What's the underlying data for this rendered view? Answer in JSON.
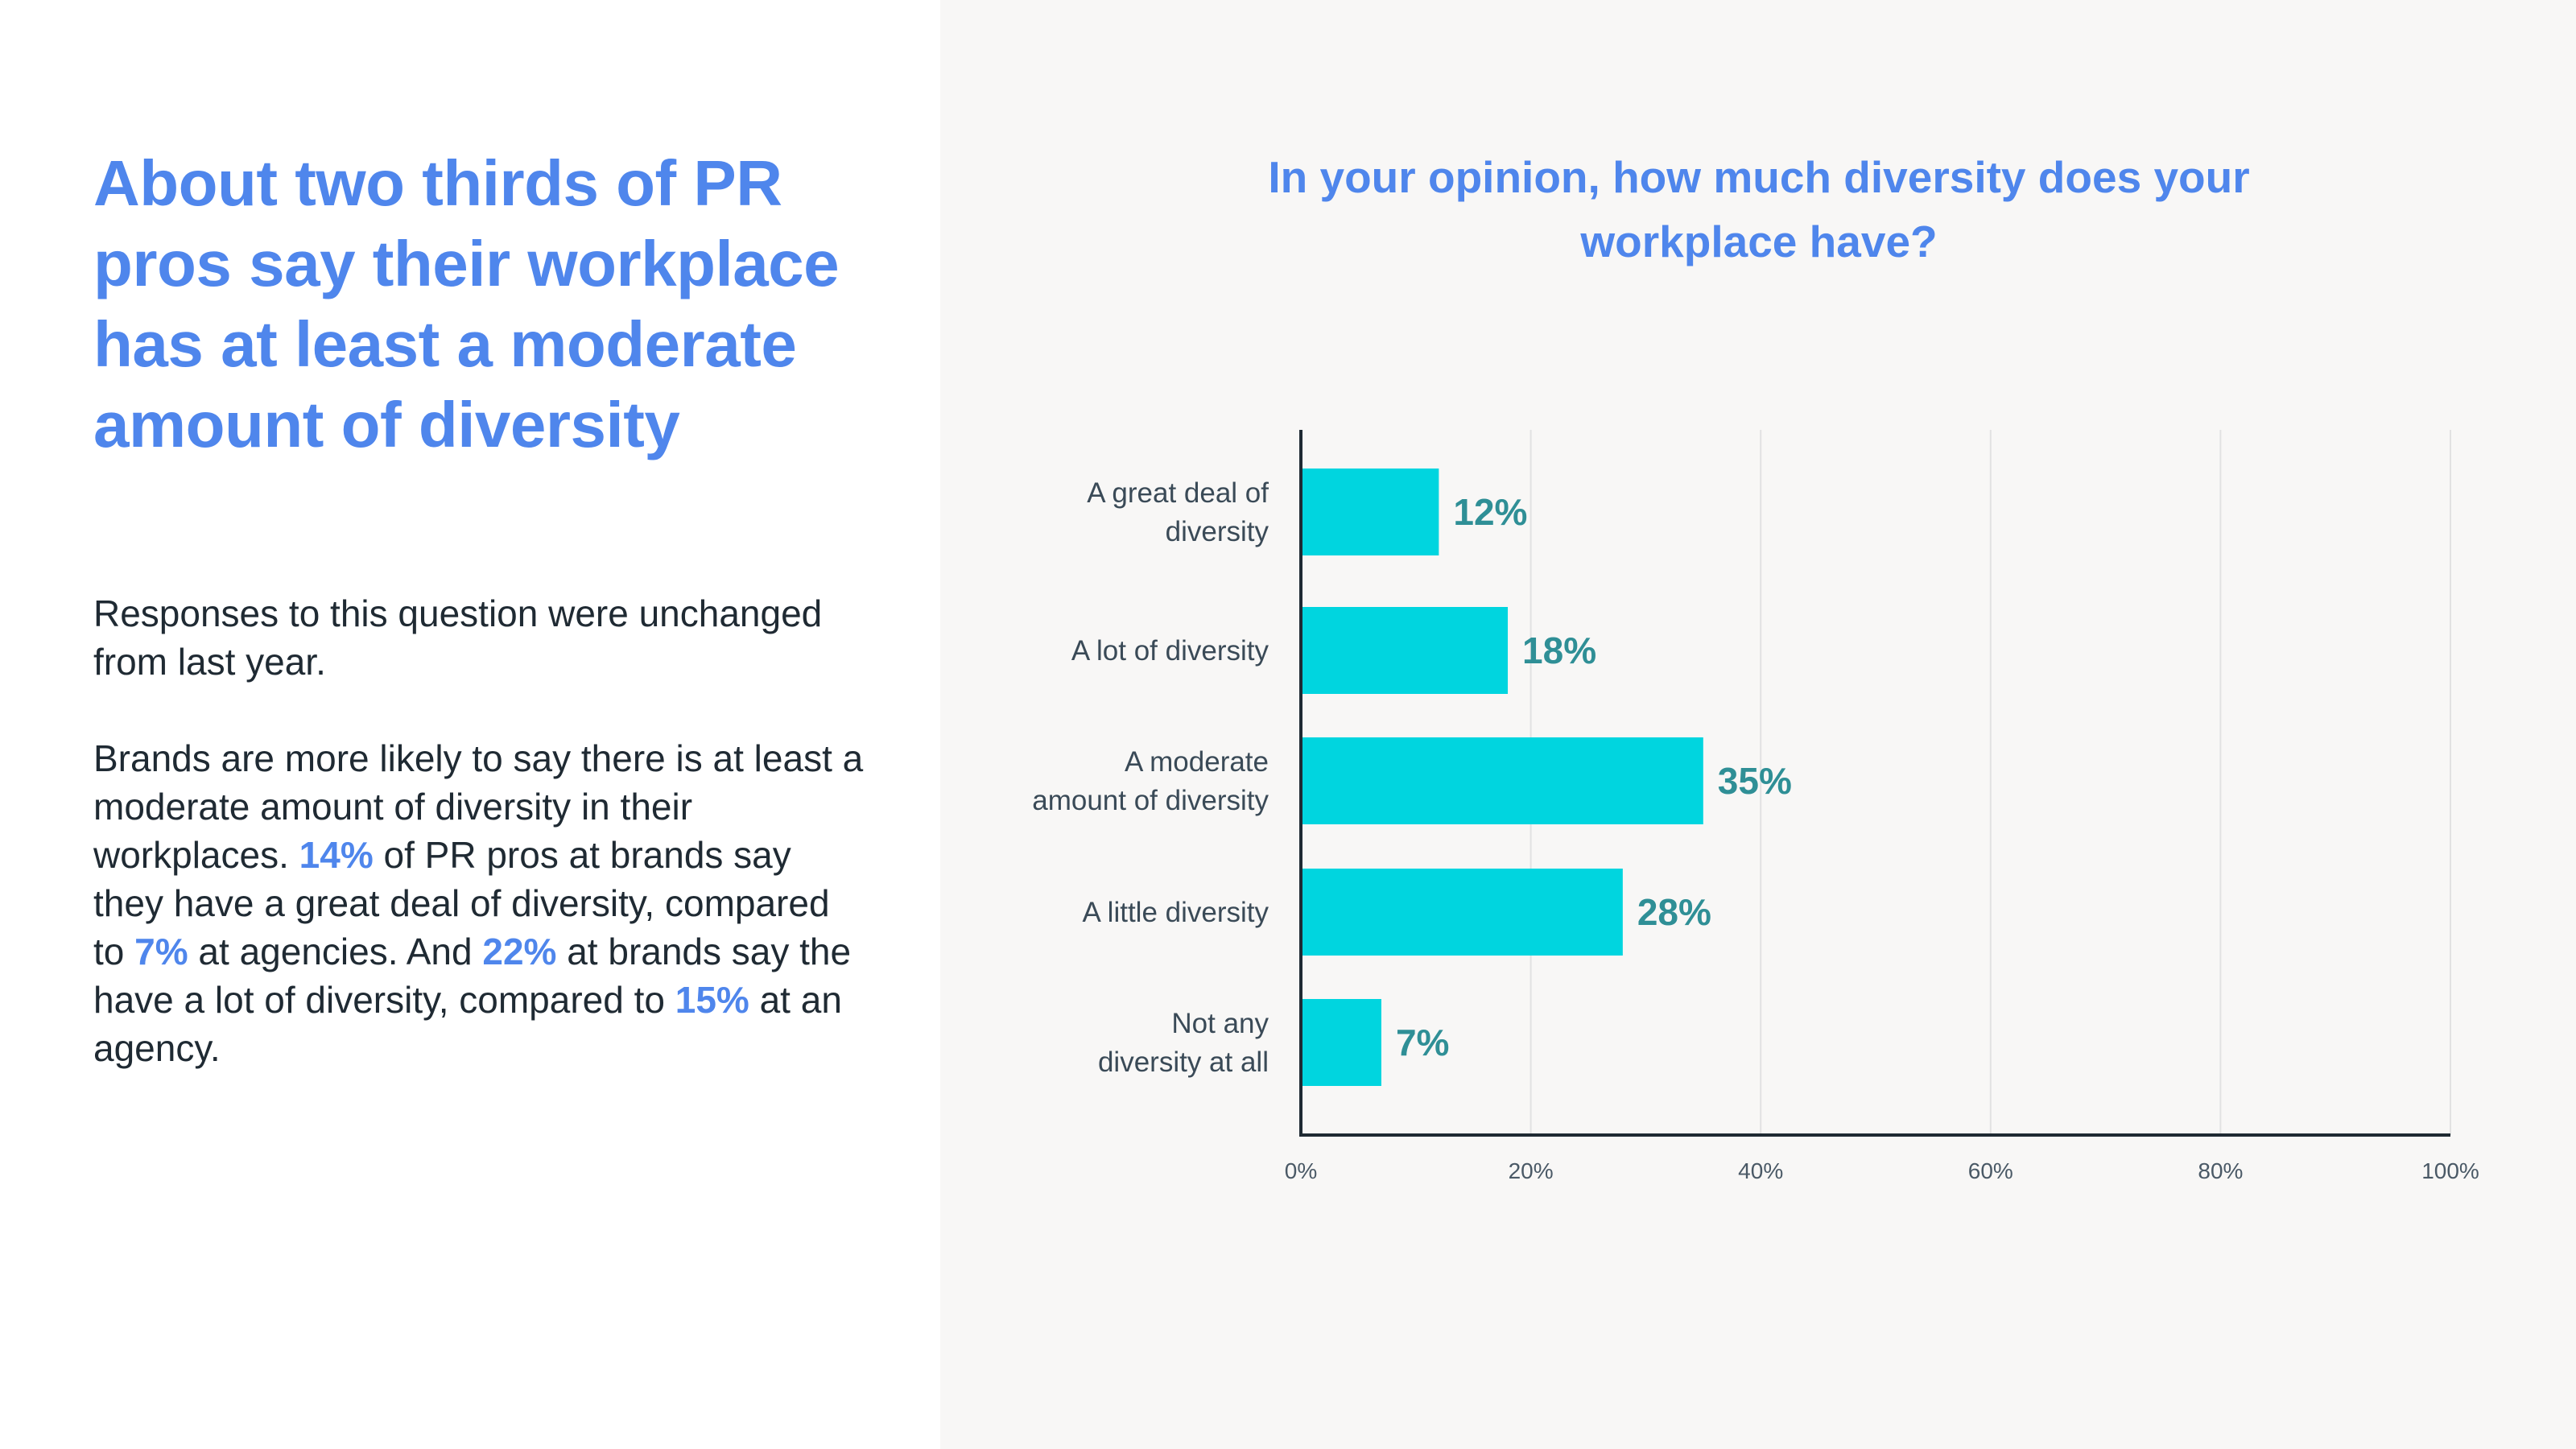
{
  "left": {
    "headline": "About two thirds of PR pros say their workplace has at least a moderate amount of diversity",
    "paragraph1": "Responses to this question were unchanged from last year.",
    "paragraph2": {
      "s1": "Brands are more likely to say there is at least a moderate amount of diversity in their workplaces. ",
      "h1": "14%",
      "s2": " of PR pros at brands say they have a great deal of diversity, compared to ",
      "h2": "7%",
      "s3": " at agencies. And ",
      "h3": "22%",
      "s4": " at brands say the have a lot of diversity, compared to ",
      "h4": "15%",
      "s5": " at an agency."
    }
  },
  "chart_title": "In your opinion, how much diversity does your workplace have?",
  "colors": {
    "bar": "#00d5df",
    "value_label": "#2f8f96",
    "accent": "#4f86ec",
    "axis": "#1f2a33",
    "grid": "#e2e2e2"
  },
  "chart_data": {
    "type": "bar",
    "orientation": "horizontal",
    "categories": [
      [
        "A great deal of",
        "diversity"
      ],
      [
        "A lot of diversity"
      ],
      [
        "A moderate",
        "amount of diversity"
      ],
      [
        "A little diversity"
      ],
      [
        "Not any",
        "diversity at all"
      ]
    ],
    "values": [
      12,
      18,
      35,
      28,
      7
    ],
    "value_labels": [
      "12%",
      "18%",
      "35%",
      "28%",
      "7%"
    ],
    "xlim": [
      0,
      100
    ],
    "xticks": [
      0,
      20,
      40,
      60,
      80,
      100
    ],
    "xtick_labels": [
      "0%",
      "20%",
      "40%",
      "60%",
      "80%",
      "100%"
    ],
    "grid": true,
    "legend": false
  }
}
